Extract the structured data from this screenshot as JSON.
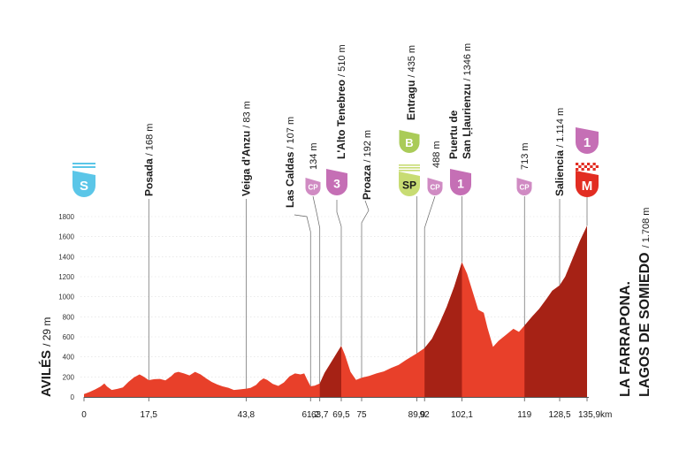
{
  "chart_data": {
    "type": "area",
    "title": "",
    "xlabel": "",
    "ylabel": "",
    "x_unit": "km",
    "xlim": [
      0,
      135.9
    ],
    "ylim": [
      0,
      1800
    ],
    "y_ticks": [
      0,
      200,
      400,
      600,
      800,
      1000,
      1200,
      1400,
      1600,
      1800
    ],
    "x_ticks": [
      {
        "value": 0,
        "label": "0"
      },
      {
        "value": 17.5,
        "label": "17,5"
      },
      {
        "value": 43.8,
        "label": "43,8"
      },
      {
        "value": 61.2,
        "label": "61,2"
      },
      {
        "value": 63.7,
        "label": "63,7"
      },
      {
        "value": 69.5,
        "label": "69,5"
      },
      {
        "value": 75,
        "label": "75"
      },
      {
        "value": 89.9,
        "label": "89,9"
      },
      {
        "value": 92,
        "label": "92"
      },
      {
        "value": 102.1,
        "label": "102,1"
      },
      {
        "value": 119,
        "label": "119"
      },
      {
        "value": 128.5,
        "label": "128,5"
      },
      {
        "value": 135.9,
        "label": "135,9"
      }
    ],
    "x_end_unit": "km",
    "colors": {
      "profile": "#e8402a",
      "climb": "#a62215",
      "line": "#666666",
      "axis": "#555555"
    },
    "climb_segments": [
      [
        63.7,
        69.5
      ],
      [
        92,
        102.1
      ],
      [
        119,
        135.9
      ]
    ],
    "elevation_profile": [
      [
        0,
        29
      ],
      [
        1.5,
        50
      ],
      [
        3,
        75
      ],
      [
        4.5,
        105
      ],
      [
        5.5,
        135
      ],
      [
        6.2,
        105
      ],
      [
        7.5,
        70
      ],
      [
        9,
        80
      ],
      [
        10.5,
        95
      ],
      [
        12,
        150
      ],
      [
        13.5,
        195
      ],
      [
        15,
        225
      ],
      [
        16,
        205
      ],
      [
        17.5,
        168
      ],
      [
        19,
        178
      ],
      [
        20.5,
        180
      ],
      [
        22,
        165
      ],
      [
        23.5,
        205
      ],
      [
        24.5,
        240
      ],
      [
        25.5,
        250
      ],
      [
        27,
        235
      ],
      [
        28.5,
        215
      ],
      [
        30,
        250
      ],
      [
        31.5,
        225
      ],
      [
        33,
        185
      ],
      [
        34.5,
        150
      ],
      [
        36,
        125
      ],
      [
        37.5,
        105
      ],
      [
        39,
        92
      ],
      [
        40.5,
        70
      ],
      [
        42,
        75
      ],
      [
        43.8,
        83
      ],
      [
        45,
        90
      ],
      [
        46.5,
        120
      ],
      [
        47.5,
        160
      ],
      [
        48.5,
        185
      ],
      [
        49.5,
        170
      ],
      [
        51,
        130
      ],
      [
        52.5,
        110
      ],
      [
        54,
        145
      ],
      [
        55.5,
        205
      ],
      [
        57,
        235
      ],
      [
        58.5,
        225
      ],
      [
        59.5,
        235
      ],
      [
        60.2,
        180
      ],
      [
        61.2,
        107
      ],
      [
        62.3,
        112
      ],
      [
        63.7,
        134
      ],
      [
        65,
        240
      ],
      [
        66.5,
        330
      ],
      [
        68,
        420
      ],
      [
        69.5,
        510
      ],
      [
        70.5,
        420
      ],
      [
        72,
        250
      ],
      [
        73.5,
        170
      ],
      [
        75,
        192
      ],
      [
        77,
        210
      ],
      [
        79,
        235
      ],
      [
        81,
        255
      ],
      [
        83,
        290
      ],
      [
        85,
        320
      ],
      [
        87,
        370
      ],
      [
        89.9,
        435
      ],
      [
        92,
        488
      ],
      [
        94,
        580
      ],
      [
        96,
        730
      ],
      [
        98,
        900
      ],
      [
        100,
        1100
      ],
      [
        102.1,
        1346
      ],
      [
        103.5,
        1230
      ],
      [
        105,
        1050
      ],
      [
        106.5,
        870
      ],
      [
        108,
        840
      ],
      [
        109,
        690
      ],
      [
        110.5,
        500
      ],
      [
        112,
        560
      ],
      [
        114,
        620
      ],
      [
        116,
        680
      ],
      [
        117.5,
        650
      ],
      [
        119,
        713
      ],
      [
        121,
        800
      ],
      [
        123,
        880
      ],
      [
        125,
        980
      ],
      [
        126.5,
        1060
      ],
      [
        128.5,
        1114
      ],
      [
        130,
        1200
      ],
      [
        132,
        1380
      ],
      [
        134,
        1560
      ],
      [
        135.9,
        1708
      ]
    ]
  },
  "start": {
    "name": "AVILÉS",
    "elevation": "29 m",
    "badge": "S",
    "badge_color": "#5bc6e8"
  },
  "finish": {
    "name_line1": "LA FARRAPONA.",
    "name_line2": "LAGOS DE SOMIEDO",
    "elevation": "1.708 m",
    "badge": "M",
    "badge_color": "#e22d22",
    "category_badge": "1",
    "category_color": "#c56fb5"
  },
  "waypoints": [
    {
      "id": "posada",
      "km": 17.5,
      "name": "Posada",
      "elevation": "168 m",
      "badge": null
    },
    {
      "id": "veiga-d-anzu",
      "km": 43.8,
      "name": "Veiga d'Anzu",
      "elevation": "83 m",
      "badge": null
    },
    {
      "id": "las-caldas",
      "km": 61.2,
      "name": "Las Caldas",
      "elevation": "107 m",
      "badge": null
    },
    {
      "id": "cp-1",
      "km": 63.7,
      "name": "",
      "elevation": "134 m",
      "badge": "CP"
    },
    {
      "id": "l-alto-tenebreo",
      "km": 69.5,
      "name": "L'Alto Tenebreo",
      "elevation": "510 m",
      "badge": "3"
    },
    {
      "id": "proaza",
      "km": 75,
      "name": "Proaza",
      "elevation": "192 m",
      "badge": null
    },
    {
      "id": "entragu",
      "km": 89.9,
      "name": "Entragu",
      "elevation": "435 m",
      "badge": "SP",
      "badge2": "B"
    },
    {
      "id": "cp-2",
      "km": 92,
      "name": "",
      "elevation": "488 m",
      "badge": "CP"
    },
    {
      "id": "puertu-de-san-llaurienzu",
      "km": 102.1,
      "name_line1": "Puertu de",
      "name_line2": "San Ḷḷaurienzu",
      "elevation": "1346 m",
      "badge": "1"
    },
    {
      "id": "cp-3",
      "km": 119,
      "name": "",
      "elevation": "713 m",
      "badge": "CP"
    },
    {
      "id": "saliencia",
      "km": 128.5,
      "name": "Saliencia",
      "elevation": "1.114 m",
      "badge": null
    }
  ],
  "badge_colors": {
    "cp": "#d08bc3",
    "cat1": "#c56fb5",
    "cat3": "#c56fb5",
    "sp": "#c8dc73",
    "b": "#aacb58"
  }
}
